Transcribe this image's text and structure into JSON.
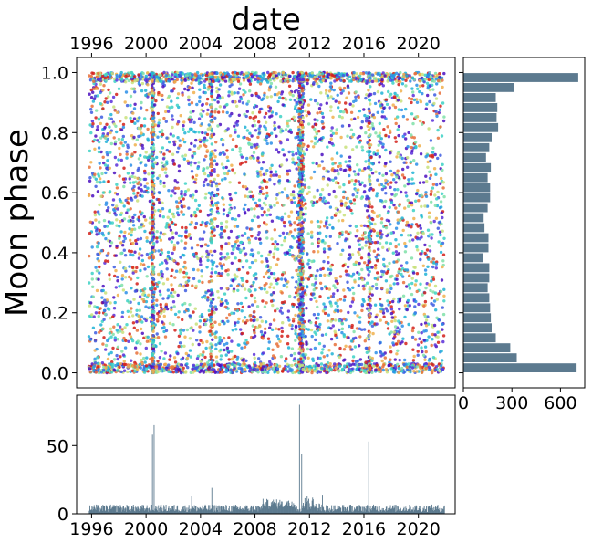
{
  "colors": {
    "bar": "#5c7a8f",
    "scatter_palette": [
      "#4b0fbf",
      "#5a2fd9",
      "#3d5ce0",
      "#2a8ee8",
      "#1fb3d6",
      "#3cd1c4",
      "#7fe0a8",
      "#c8e07a",
      "#f0b04c",
      "#e8703a",
      "#d4201a"
    ]
  },
  "chart_data": [
    {
      "id": "main-scatter",
      "type": "scatter",
      "xlabel": "date",
      "ylabel": "Moon phase",
      "x_ticks": [
        "1996",
        "2000",
        "2004",
        "2008",
        "2012",
        "2016",
        "2020"
      ],
      "x_tick_positions": [
        1996,
        2000,
        2004,
        2008,
        2012,
        2016,
        2020
      ],
      "xlim": [
        1994.9,
        2022.7
      ],
      "y_ticks": [
        "0.0",
        "0.2",
        "0.4",
        "0.6",
        "0.8",
        "1.0"
      ],
      "y_tick_positions": [
        0.0,
        0.2,
        0.4,
        0.6,
        0.8,
        1.0
      ],
      "ylim": [
        -0.05,
        1.05
      ],
      "x_range": [
        1995.8,
        2021.9
      ],
      "point_count_estimate": 6800,
      "dense_columns": [
        2000.5,
        2011.2,
        2016.4,
        2004.8
      ],
      "grid": false,
      "legend": false
    },
    {
      "id": "right-histogram",
      "type": "bar",
      "orientation": "horizontal",
      "x_ticks": [
        "0",
        "300",
        "600"
      ],
      "x_tick_positions": [
        0,
        300,
        600
      ],
      "xlim": [
        0,
        750
      ],
      "ylim": [
        -0.05,
        1.05
      ],
      "bin_width": 0.0333,
      "bins_start": [
        0.0,
        0.0333,
        0.0667,
        0.1,
        0.1333,
        0.1667,
        0.2,
        0.2333,
        0.2667,
        0.3,
        0.3333,
        0.3667,
        0.4,
        0.4333,
        0.4667,
        0.5,
        0.5333,
        0.5667,
        0.6,
        0.6333,
        0.6667,
        0.7,
        0.7333,
        0.7667,
        0.8,
        0.8333,
        0.8667,
        0.9,
        0.9333,
        0.9667
      ],
      "values": [
        700,
        330,
        290,
        200,
        175,
        170,
        165,
        160,
        150,
        160,
        160,
        120,
        155,
        155,
        130,
        125,
        150,
        165,
        165,
        150,
        170,
        140,
        160,
        175,
        215,
        205,
        210,
        200,
        315,
        710
      ]
    },
    {
      "id": "bottom-histogram",
      "type": "bar",
      "x_ticks": [
        "1996",
        "2000",
        "2004",
        "2008",
        "2012",
        "2016",
        "2020"
      ],
      "x_tick_positions": [
        1996,
        2000,
        2004,
        2008,
        2012,
        2016,
        2020
      ],
      "xlim": [
        1994.9,
        2022.7
      ],
      "y_ticks": [
        "0",
        "50"
      ],
      "y_tick_positions": [
        0,
        50
      ],
      "ylim": [
        0,
        87
      ],
      "spikes": [
        {
          "x": 2000.55,
          "value": 65
        },
        {
          "x": 2000.45,
          "value": 58
        },
        {
          "x": 2011.25,
          "value": 80
        },
        {
          "x": 2011.4,
          "value": 44
        },
        {
          "x": 2016.3,
          "value": 53
        },
        {
          "x": 2004.8,
          "value": 19
        },
        {
          "x": 2003.3,
          "value": 13
        },
        {
          "x": 2012.9,
          "value": 14
        }
      ],
      "baseline_level": 4
    }
  ]
}
